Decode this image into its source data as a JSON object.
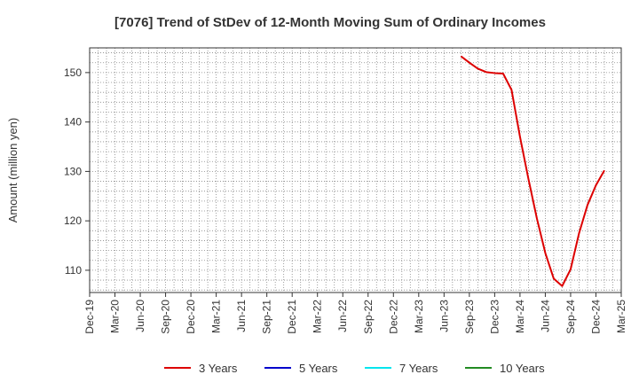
{
  "chart_data": {
    "type": "line",
    "title": "[7076]  Trend of StDev of 12-Month Moving Sum of Ordinary Incomes",
    "xlabel": "",
    "ylabel": "Amount (million yen)",
    "ylim": [
      105.5,
      155
    ],
    "yticks": [
      110,
      120,
      130,
      140,
      150
    ],
    "xticks": [
      "Dec-19",
      "Mar-20",
      "Jun-20",
      "Sep-20",
      "Dec-20",
      "Mar-21",
      "Jun-21",
      "Sep-21",
      "Dec-21",
      "Mar-22",
      "Jun-22",
      "Sep-22",
      "Dec-22",
      "Mar-23",
      "Jun-23",
      "Sep-23",
      "Dec-23",
      "Mar-24",
      "Jun-24",
      "Sep-24",
      "Dec-24",
      "Mar-25"
    ],
    "grid": true,
    "legend_position": "bottom",
    "series": [
      {
        "name": "3 Years",
        "color": "#dd0000",
        "points": [
          [
            "Aug-23",
            153.3
          ],
          [
            "Sep-23",
            152.0
          ],
          [
            "Oct-23",
            150.8
          ],
          [
            "Nov-23",
            150.1
          ],
          [
            "Dec-23",
            149.9
          ],
          [
            "Jan-24",
            149.8
          ],
          [
            "Feb-24",
            146.5
          ],
          [
            "Mar-24",
            137.0
          ],
          [
            "Apr-24",
            128.5
          ],
          [
            "May-24",
            120.5
          ],
          [
            "Jun-24",
            113.5
          ],
          [
            "Jul-24",
            108.3
          ],
          [
            "Aug-24",
            106.8
          ],
          [
            "Sep-24",
            110.2
          ],
          [
            "Oct-24",
            117.5
          ],
          [
            "Nov-24",
            123.2
          ],
          [
            "Dec-24",
            127.2
          ],
          [
            "Jan-25",
            130.2
          ]
        ]
      },
      {
        "name": "5 Years",
        "color": "#0000cc",
        "points": []
      },
      {
        "name": "7 Years",
        "color": "#00e5ee",
        "points": []
      },
      {
        "name": "10 Years",
        "color": "#228b22",
        "points": []
      }
    ]
  }
}
